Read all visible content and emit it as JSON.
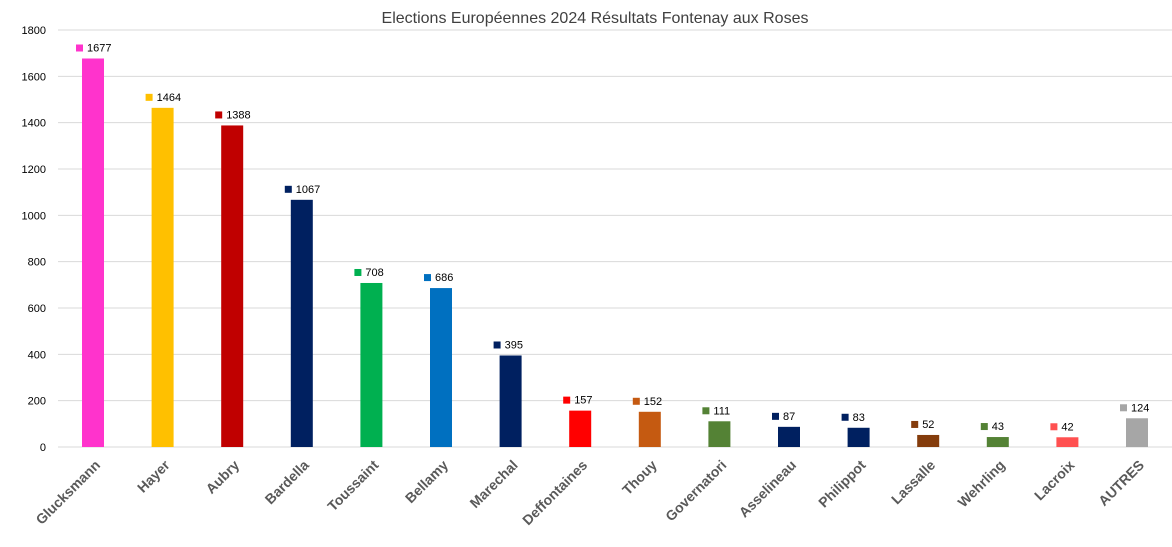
{
  "chart_data": {
    "type": "bar",
    "title": "Elections Européennes 2024 Résultats Fontenay aux Roses",
    "xlabel": "",
    "ylabel": "",
    "ylim": [
      0,
      1800
    ],
    "yticks": [
      "0",
      "200",
      "400",
      "600",
      "800",
      "1000",
      "1200",
      "1400",
      "1600",
      "1800"
    ],
    "grid": true,
    "legend": "none",
    "categories": [
      "Glucksmann",
      "Hayer",
      "Aubry",
      "Bardella",
      "Toussaint",
      "Bellamy",
      "Marechal",
      "Deffontaines",
      "Thouy",
      "Governatori",
      "Asselineau",
      "Philippot",
      "Lassalle",
      "Wehrling",
      "Lacroix",
      "AUTRES"
    ],
    "values": [
      1677,
      1464,
      1388,
      1067,
      708,
      686,
      395,
      157,
      152,
      111,
      87,
      83,
      52,
      43,
      42,
      124
    ],
    "value_labels": [
      "1677",
      "1464",
      "1388",
      "1067",
      "708",
      "686",
      "395",
      "157",
      "152",
      "111",
      "87",
      "83",
      "52",
      "43",
      "42",
      "124"
    ],
    "colors": [
      "#ff33cc",
      "#ffc000",
      "#c00000",
      "#002060",
      "#00b050",
      "#0070c0",
      "#002060",
      "#ff0000",
      "#c55a11",
      "#548235",
      "#002060",
      "#002060",
      "#843c0c",
      "#548235",
      "#ff5050",
      "#a6a6a6"
    ]
  }
}
